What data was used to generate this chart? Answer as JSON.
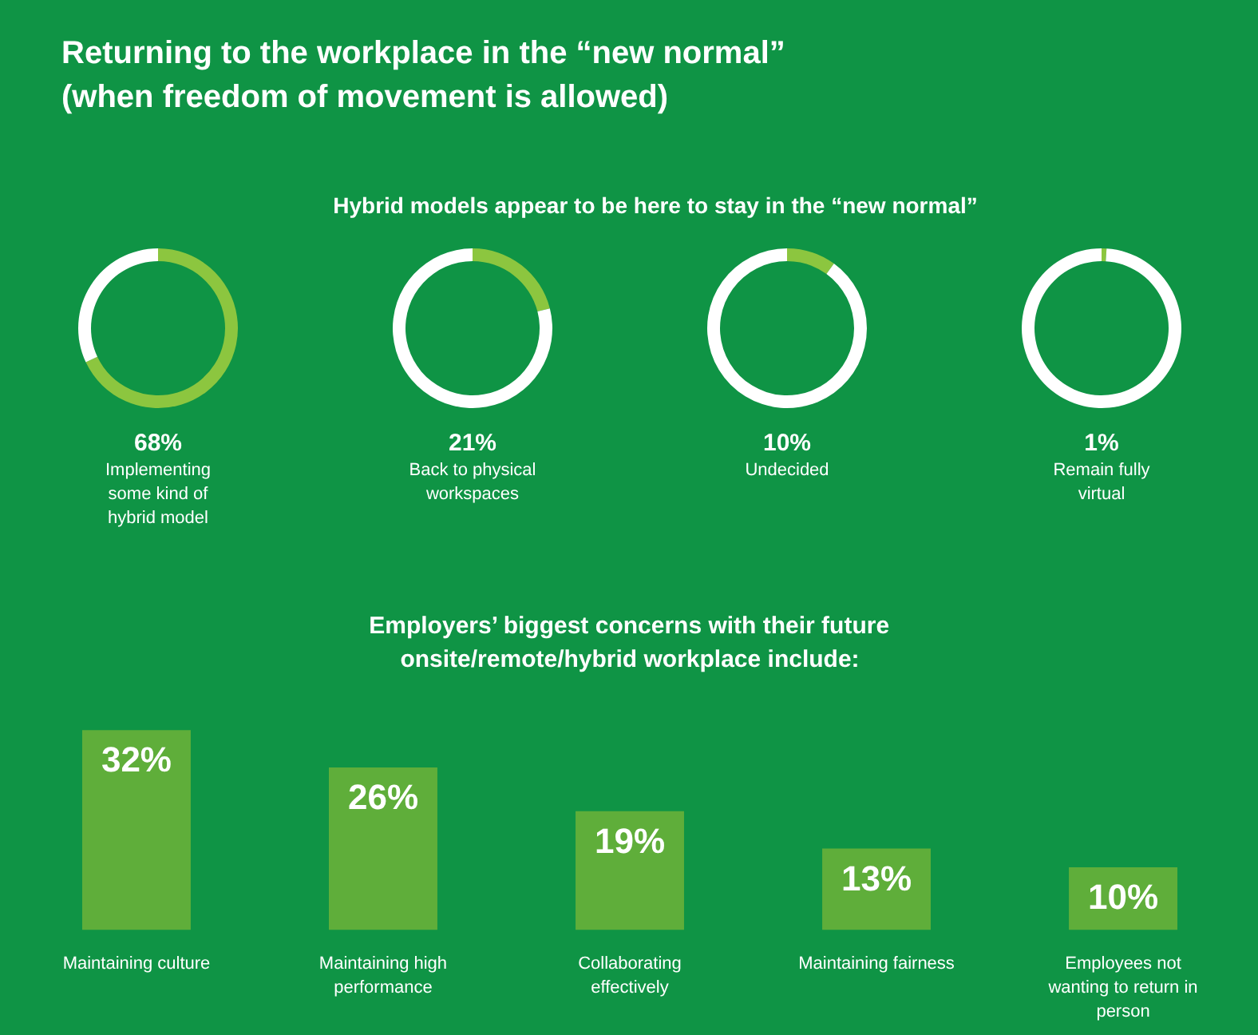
{
  "chart_data": [
    {
      "type": "donut",
      "title": "Returning to the workplace in the “new normal” (when freedom of movement is allowed)",
      "subtitle": "Hybrid models appear to be here to stay in the “new normal”",
      "categories": [
        null,
        null
      ],
      "annotations": [
        "68%",
        "Implementing some kind of hybrid model"
      ],
      "values": [
        68,
        32
      ],
      "colors": [
        "#8cc63f",
        "#ffffff"
      ]
    },
    {
      "type": "donut",
      "categories": [
        null,
        null
      ],
      "annotations": [
        "21%",
        "Back to physical workspaces"
      ],
      "values": [
        21,
        79
      ],
      "colors": [
        "#8cc63f",
        "#ffffff"
      ]
    },
    {
      "type": "donut",
      "categories": [
        null,
        null
      ],
      "annotations": [
        "10%",
        "Undecided"
      ],
      "values": [
        10,
        90
      ],
      "colors": [
        "#8cc63f",
        "#ffffff"
      ]
    },
    {
      "type": "donut",
      "categories": [
        null,
        null
      ],
      "annotations": [
        "1%",
        "Remain fully virtual"
      ],
      "values": [
        1,
        99
      ],
      "colors": [
        "#8cc63f",
        "#ffffff"
      ]
    },
    {
      "type": "bar",
      "title": "Employers’ biggest concerns with their future onsite/remote/hybrid workplace include:",
      "categories": [
        "Maintaining culture",
        "Maintaining high performance",
        "Collaborating effectively",
        "Maintaining fairness",
        "Employees not wanting to return in person"
      ],
      "values": [
        32,
        26,
        19,
        13,
        10
      ],
      "color": "#5fae3a",
      "value_labels": [
        "32%",
        "26%",
        "19%",
        "13%",
        "10%"
      ]
    }
  ]
}
